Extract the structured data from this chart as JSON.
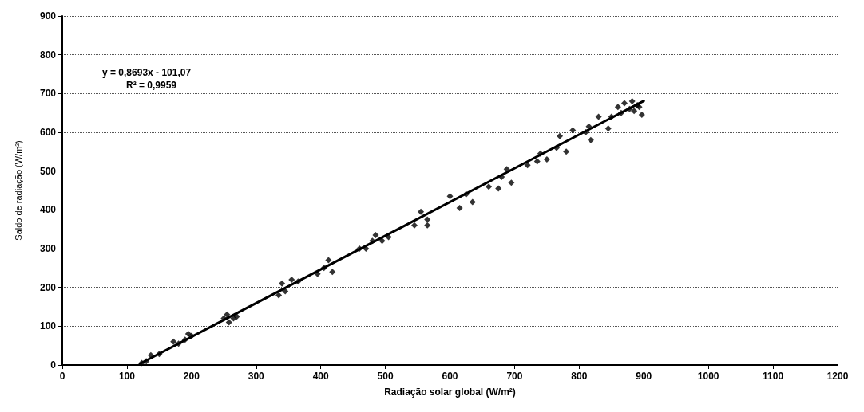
{
  "chart_data": {
    "type": "scatter",
    "xlabel": "Radiação solar global (W/m²)",
    "ylabel": "Saldo de radiação (W/m²)",
    "annotations": [
      "y = 0,8693x - 101,07",
      "R² = 0,9959"
    ],
    "xlim": [
      0,
      1200
    ],
    "xticks": [
      0,
      100,
      200,
      300,
      400,
      500,
      600,
      700,
      800,
      900,
      1000,
      1100,
      1200
    ],
    "ylim": [
      0,
      900
    ],
    "yticks": [
      0,
      100,
      200,
      300,
      400,
      500,
      600,
      700,
      800,
      900
    ],
    "grid": "y",
    "marker": "diamond",
    "series": [
      {
        "color": "#000000",
        "x": [
          123,
          130,
          137,
          150,
          172,
          180,
          190,
          195,
          200,
          250,
          255,
          258,
          265,
          270,
          335,
          340,
          345,
          355,
          365,
          395,
          405,
          412,
          418,
          460,
          470,
          480,
          485,
          495,
          505,
          545,
          555,
          565,
          565,
          600,
          615,
          625,
          635,
          660,
          675,
          680,
          688,
          695,
          720,
          735,
          740,
          750,
          765,
          770,
          780,
          790,
          810,
          815,
          818,
          830,
          845,
          850,
          860,
          865,
          870,
          878,
          882,
          885,
          890,
          893,
          897
        ],
        "values": [
          5,
          10,
          25,
          28,
          60,
          55,
          65,
          80,
          75,
          120,
          130,
          110,
          120,
          125,
          180,
          210,
          190,
          220,
          215,
          235,
          250,
          270,
          240,
          300,
          300,
          320,
          335,
          320,
          330,
          360,
          395,
          375,
          360,
          435,
          405,
          440,
          420,
          460,
          455,
          485,
          505,
          470,
          515,
          525,
          545,
          530,
          560,
          590,
          550,
          605,
          600,
          615,
          580,
          640,
          610,
          640,
          665,
          650,
          675,
          660,
          680,
          655,
          670,
          665,
          645
        ]
      },
      {
        "type": "line",
        "color": "#000000",
        "x": [
          120,
          900
        ],
        "values": [
          3,
          681
        ],
        "marker": "none",
        "line_style": "solid"
      }
    ]
  }
}
